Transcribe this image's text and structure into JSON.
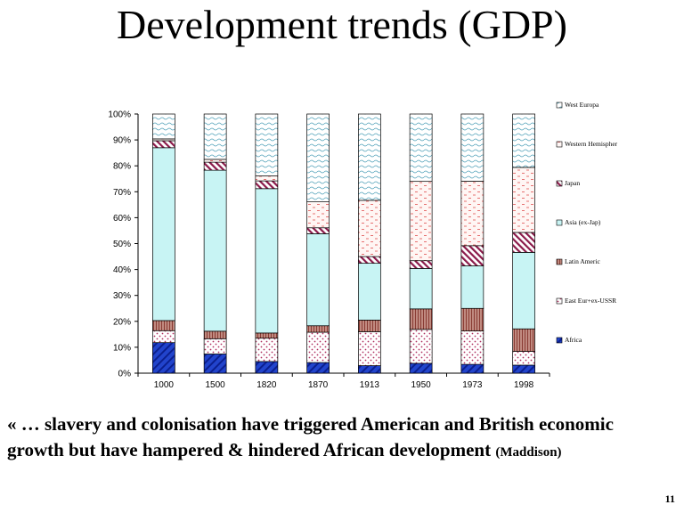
{
  "slide": {
    "title": "Development trends (GDP)",
    "quote_main": "« … slavery and colonisation have triggered American and British economic growth  but have hampered & hindered African development",
    "quote_source": "(Maddison)",
    "page_number": "11"
  },
  "chart_data": {
    "type": "bar",
    "stacked": "percent",
    "categories": [
      "1000",
      "1500",
      "1820",
      "1870",
      "1913",
      "1950",
      "1973",
      "1998"
    ],
    "y_ticks": [
      "0%",
      "10%",
      "20%",
      "30%",
      "40%",
      "50%",
      "60%",
      "70%",
      "80%",
      "90%",
      "100%"
    ],
    "ylim": [
      0,
      100
    ],
    "grid": false,
    "legend_position": "right",
    "series": [
      {
        "name": "Africa",
        "color": "#1f3fbf",
        "pattern": "blue-diagonal",
        "values": [
          11.8,
          7.4,
          4.5,
          4.1,
          2.9,
          3.8,
          3.4,
          3.1
        ]
      },
      {
        "name": "East Eur+ex-USSR",
        "color": "#b03060",
        "pattern": "dots",
        "values": [
          4.6,
          5.9,
          9.0,
          11.7,
          13.1,
          13.1,
          12.9,
          5.3
        ]
      },
      {
        "name": "Latin Americ",
        "color": "#a05a50",
        "pattern": "vertical-lines",
        "values": [
          3.9,
          2.9,
          2.0,
          2.5,
          4.5,
          7.9,
          8.7,
          8.7
        ]
      },
      {
        "name": "Asia (ex-Jap)",
        "color": "#c8f4f4",
        "pattern": "solid",
        "values": [
          66.7,
          62.1,
          55.7,
          35.5,
          21.9,
          15.6,
          16.4,
          29.5
        ]
      },
      {
        "name": "Japan",
        "color": "#8b1a4a",
        "pattern": "diagonal",
        "values": [
          2.7,
          3.1,
          3.0,
          2.3,
          2.6,
          3.0,
          7.8,
          7.7
        ]
      },
      {
        "name": "Western Hemispher",
        "color": "#e05050",
        "pattern": "dashes",
        "values": [
          0.7,
          1.1,
          1.9,
          10.0,
          21.7,
          30.6,
          24.9,
          25.1
        ]
      },
      {
        "name": "West Europa",
        "color": "#4fa0b8",
        "pattern": "waves",
        "values": [
          9.6,
          17.5,
          23.9,
          33.9,
          33.3,
          26.0,
          25.9,
          20.6
        ]
      }
    ]
  }
}
